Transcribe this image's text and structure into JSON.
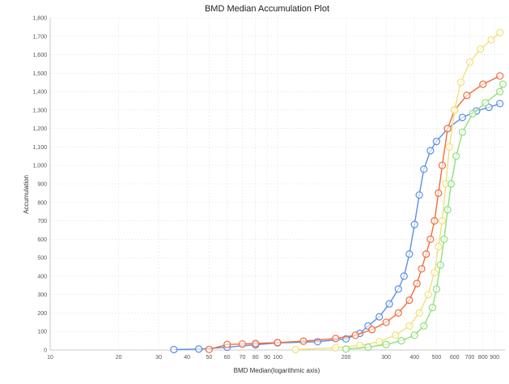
{
  "chart_data": {
    "type": "scatter",
    "title": "BMD Median Accumulation Plot",
    "xlabel": "BMD Median(logarithmic axis)",
    "ylabel": "Accumulation",
    "xscale": "log",
    "xlim": [
      10,
      1000
    ],
    "ylim": [
      0,
      1800
    ],
    "grid": true,
    "xticks": [
      10,
      20,
      30,
      40,
      50,
      60,
      70,
      80,
      90,
      100,
      200,
      300,
      400,
      500,
      600,
      700,
      800,
      900
    ],
    "yticks": [
      0,
      100,
      200,
      300,
      400,
      500,
      600,
      700,
      800,
      900,
      1000,
      1100,
      1200,
      1300,
      1400,
      1500,
      1600,
      1700,
      1800
    ],
    "ytick_labels": [
      "0",
      "100",
      "200",
      "300",
      "400",
      "500",
      "600",
      "700",
      "800",
      "900",
      "1,000",
      "1,100",
      "1,200",
      "1,300",
      "1,400",
      "1,500",
      "1,600",
      "1,700",
      "1,800"
    ],
    "series": [
      {
        "color": "#5b8ee6",
        "points": [
          [
            35,
            2
          ],
          [
            45,
            5
          ],
          [
            60,
            15
          ],
          [
            80,
            28
          ],
          [
            100,
            38
          ],
          [
            150,
            45
          ],
          [
            200,
            60
          ],
          [
            230,
            90
          ],
          [
            250,
            130
          ],
          [
            280,
            180
          ],
          [
            310,
            250
          ],
          [
            340,
            330
          ],
          [
            360,
            400
          ],
          [
            380,
            520
          ],
          [
            400,
            680
          ],
          [
            420,
            840
          ],
          [
            440,
            980
          ],
          [
            470,
            1080
          ],
          [
            500,
            1130
          ],
          [
            560,
            1200
          ],
          [
            650,
            1260
          ],
          [
            750,
            1295
          ],
          [
            850,
            1315
          ],
          [
            950,
            1335
          ]
        ]
      },
      {
        "color": "#f26b3a",
        "points": [
          [
            50,
            3
          ],
          [
            60,
            30
          ],
          [
            70,
            32
          ],
          [
            80,
            35
          ],
          [
            100,
            40
          ],
          [
            130,
            48
          ],
          [
            180,
            62
          ],
          [
            220,
            80
          ],
          [
            260,
            110
          ],
          [
            300,
            150
          ],
          [
            340,
            200
          ],
          [
            380,
            270
          ],
          [
            410,
            360
          ],
          [
            430,
            440
          ],
          [
            450,
            520
          ],
          [
            470,
            600
          ],
          [
            490,
            700
          ],
          [
            510,
            850
          ],
          [
            530,
            1000
          ],
          [
            560,
            1200
          ],
          [
            600,
            1300
          ],
          [
            680,
            1380
          ],
          [
            800,
            1440
          ],
          [
            950,
            1485
          ]
        ]
      },
      {
        "color": "#f0e07a",
        "points": [
          [
            120,
            2
          ],
          [
            180,
            12
          ],
          [
            230,
            25
          ],
          [
            280,
            45
          ],
          [
            330,
            80
          ],
          [
            380,
            130
          ],
          [
            420,
            200
          ],
          [
            460,
            300
          ],
          [
            490,
            420
          ],
          [
            510,
            560
          ],
          [
            530,
            700
          ],
          [
            550,
            900
          ],
          [
            570,
            1100
          ],
          [
            600,
            1300
          ],
          [
            640,
            1450
          ],
          [
            700,
            1560
          ],
          [
            780,
            1630
          ],
          [
            870,
            1680
          ],
          [
            950,
            1720
          ]
        ]
      },
      {
        "color": "#8ee07a",
        "points": [
          [
            200,
            5
          ],
          [
            250,
            15
          ],
          [
            300,
            30
          ],
          [
            350,
            50
          ],
          [
            400,
            80
          ],
          [
            440,
            130
          ],
          [
            480,
            230
          ],
          [
            500,
            330
          ],
          [
            520,
            460
          ],
          [
            540,
            600
          ],
          [
            560,
            760
          ],
          [
            580,
            900
          ],
          [
            610,
            1050
          ],
          [
            650,
            1180
          ],
          [
            720,
            1280
          ],
          [
            820,
            1340
          ],
          [
            950,
            1400
          ],
          [
            980,
            1440
          ]
        ]
      }
    ]
  }
}
